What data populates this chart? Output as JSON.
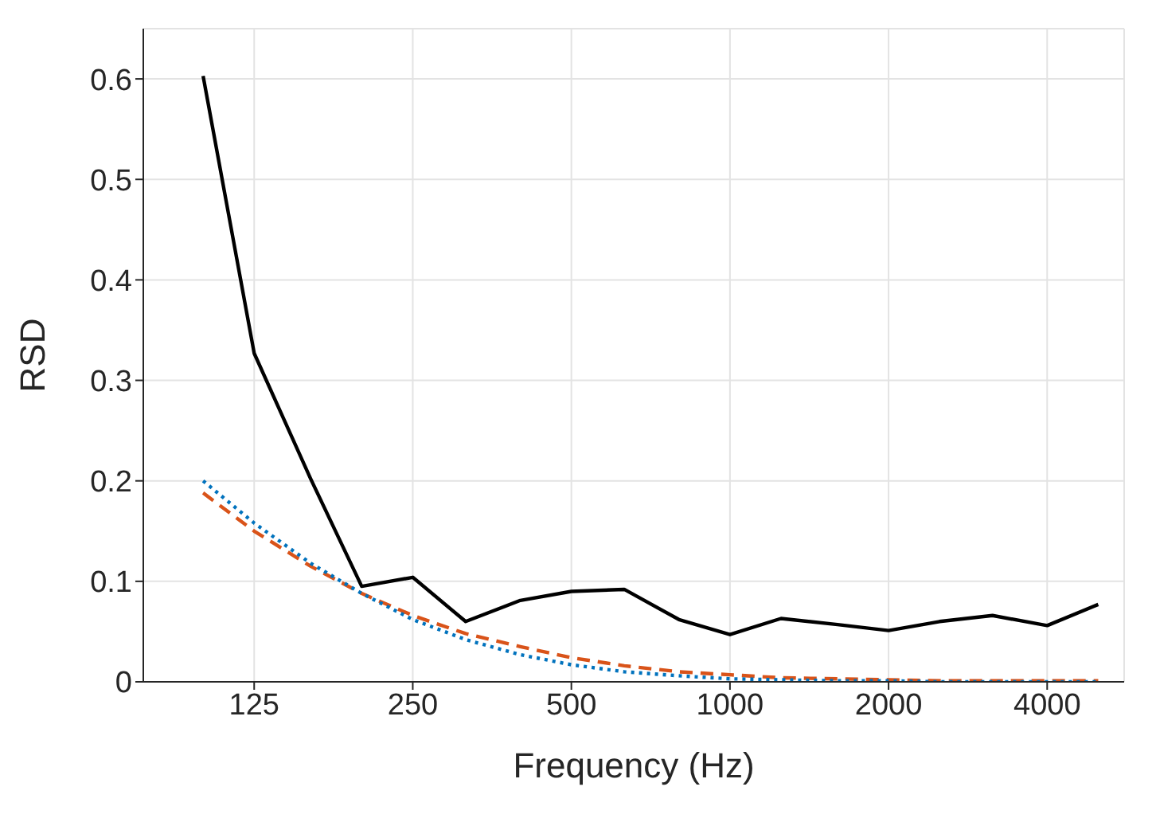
{
  "chart_data": {
    "type": "line",
    "xlabel": "Frequency (Hz)",
    "ylabel": "RSD",
    "x": [
      100,
      125,
      160,
      200,
      250,
      315,
      400,
      500,
      630,
      800,
      1000,
      1250,
      1600,
      2000,
      2500,
      3150,
      4000,
      5000
    ],
    "series": [
      {
        "color": "#000000",
        "line_style": "solid",
        "values": [
          0.603,
          0.327,
          0.202,
          0.095,
          0.104,
          0.06,
          0.081,
          0.09,
          0.092,
          0.062,
          0.047,
          0.063,
          0.057,
          0.051,
          0.06,
          0.066,
          0.056,
          0.077
        ]
      },
      {
        "color": "#d95319",
        "line_style": "dashed",
        "values": [
          0.188,
          0.15,
          0.115,
          0.088,
          0.066,
          0.048,
          0.035,
          0.024,
          0.016,
          0.01,
          0.007,
          0.004,
          0.003,
          0.002,
          0.001,
          0.001,
          0.001,
          0.001
        ]
      },
      {
        "color": "#0072bd",
        "line_style": "dotted",
        "values": [
          0.2,
          0.158,
          0.118,
          0.088,
          0.062,
          0.042,
          0.027,
          0.017,
          0.01,
          0.006,
          0.003,
          0.002,
          0.001,
          0.001,
          0,
          0,
          0,
          0
        ]
      }
    ],
    "log": "x",
    "xlim": [
      77,
      5600
    ],
    "xticks": [
      125,
      250,
      500,
      1000,
      2000,
      4000
    ],
    "ylim": [
      0,
      0.65
    ],
    "yticks": [
      0,
      0.1,
      0.2,
      0.3,
      0.4,
      0.5,
      0.6
    ],
    "grid": true,
    "legend": false,
    "marker": "none"
  }
}
